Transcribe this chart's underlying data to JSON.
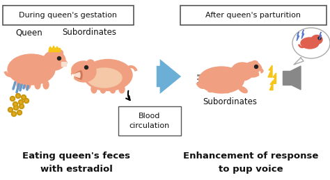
{
  "bg_color": "#ffffff",
  "left_box_text": "During queen's gestation",
  "right_box_text": "After queen's parturition",
  "queen_label": "Queen",
  "subordinates_label_left": "Subordinates",
  "subordinates_label_right": "Subordinates",
  "blood_circ_text": "Blood\ncirculation",
  "bottom_left_text": "Eating queen's feces\nwith estradiol",
  "bottom_right_text": "Enhancement of response\nto pup voice",
  "arrow_color": "#6baed6",
  "box_border_color": "#555555",
  "text_color": "#111111",
  "animal_color": "#f0a080",
  "animal_belly": "#f5c8a8",
  "feces_color": "#c8960c",
  "lightning_color": "#f5c518",
  "crown_color": "#f5c518",
  "rain_color": "#6699cc",
  "speed_color": "#888888",
  "speaker_color": "#888888",
  "bubble_stroke": "#aaaaaa",
  "baby_color": "#e06050",
  "blue_flash": "#5577cc"
}
